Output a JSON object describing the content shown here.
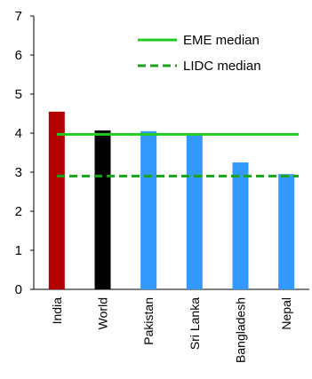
{
  "chart_data": {
    "type": "bar",
    "title": "",
    "xlabel": "",
    "ylabel": "",
    "ylim": [
      0,
      7
    ],
    "yticks": [
      0,
      1,
      2,
      3,
      4,
      5,
      6,
      7
    ],
    "grid": false,
    "legend_position": "top-right",
    "categories": [
      "India",
      "World",
      "Pakistan",
      "Sri Lanka",
      "Bangladesh",
      "Nepal"
    ],
    "values": [
      4.55,
      4.07,
      4.05,
      3.95,
      3.25,
      2.95
    ],
    "bar_colors": [
      "#b30000",
      "#000000",
      "#3399ff",
      "#3399ff",
      "#3399ff",
      "#3399ff"
    ],
    "reference_lines": [
      {
        "name": "EME median",
        "value": 3.97,
        "style": "solid",
        "color": "#22cc22"
      },
      {
        "name": "LIDC median",
        "value": 2.9,
        "style": "dashed",
        "color": "#1aa31a"
      }
    ]
  }
}
